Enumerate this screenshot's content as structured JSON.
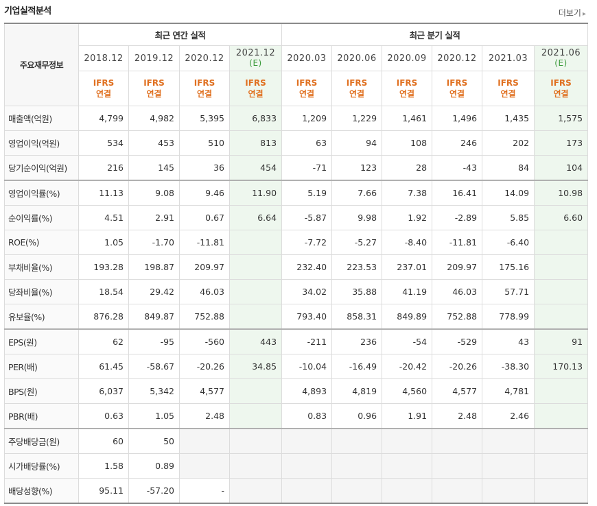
{
  "header": {
    "title": "기업실적분석",
    "more_label": "더보기",
    "more_icon": "chevron-right-icon"
  },
  "table": {
    "row_header_label": "주요재무정보",
    "groups": [
      "최근 연간 실적",
      "최근 분기 실적"
    ],
    "periods": [
      {
        "label": "2018.12",
        "est": ""
      },
      {
        "label": "2019.12",
        "est": ""
      },
      {
        "label": "2020.12",
        "est": ""
      },
      {
        "label": "2021.12",
        "est": "(E)"
      },
      {
        "label": "2020.03",
        "est": ""
      },
      {
        "label": "2020.06",
        "est": ""
      },
      {
        "label": "2020.09",
        "est": ""
      },
      {
        "label": "2020.12",
        "est": ""
      },
      {
        "label": "2021.03",
        "est": ""
      },
      {
        "label": "2021.06",
        "est": "(E)"
      }
    ],
    "ifrs_top": "IFRS",
    "ifrs_bottom": "연결",
    "rows": [
      {
        "label": "매출액(억원)",
        "values": [
          "4,799",
          "4,982",
          "5,395",
          "6,833",
          "1,209",
          "1,229",
          "1,461",
          "1,496",
          "1,435",
          "1,575"
        ]
      },
      {
        "label": "영업이익(억원)",
        "values": [
          "534",
          "453",
          "510",
          "813",
          "63",
          "94",
          "108",
          "246",
          "202",
          "173"
        ]
      },
      {
        "label": "당기순이익(억원)",
        "values": [
          "216",
          "145",
          "36",
          "454",
          "-71",
          "123",
          "28",
          "-43",
          "84",
          "104"
        ]
      },
      {
        "label": "영업이익률(%)",
        "values": [
          "11.13",
          "9.08",
          "9.46",
          "11.90",
          "5.19",
          "7.66",
          "7.38",
          "16.41",
          "14.09",
          "10.98"
        ]
      },
      {
        "label": "순이익률(%)",
        "values": [
          "4.51",
          "2.91",
          "0.67",
          "6.64",
          "-5.87",
          "9.98",
          "1.92",
          "-2.89",
          "5.85",
          "6.60"
        ]
      },
      {
        "label": "ROE(%)",
        "values": [
          "1.05",
          "-1.70",
          "-11.81",
          "",
          "-7.72",
          "-5.27",
          "-8.40",
          "-11.81",
          "-6.40",
          ""
        ]
      },
      {
        "label": "부채비율(%)",
        "values": [
          "193.28",
          "198.87",
          "209.97",
          "",
          "232.40",
          "223.53",
          "237.01",
          "209.97",
          "175.16",
          ""
        ]
      },
      {
        "label": "당좌비율(%)",
        "values": [
          "18.54",
          "29.42",
          "46.03",
          "",
          "34.02",
          "35.88",
          "41.19",
          "46.03",
          "57.71",
          ""
        ]
      },
      {
        "label": "유보율(%)",
        "values": [
          "876.28",
          "849.87",
          "752.88",
          "",
          "793.40",
          "858.31",
          "849.89",
          "752.88",
          "778.99",
          ""
        ]
      },
      {
        "label": "EPS(원)",
        "values": [
          "62",
          "-95",
          "-560",
          "443",
          "-211",
          "236",
          "-54",
          "-529",
          "43",
          "91"
        ]
      },
      {
        "label": "PER(배)",
        "values": [
          "61.45",
          "-58.67",
          "-20.26",
          "34.85",
          "-10.04",
          "-16.49",
          "-20.42",
          "-20.26",
          "-38.30",
          "170.13"
        ]
      },
      {
        "label": "BPS(원)",
        "values": [
          "6,037",
          "5,342",
          "4,577",
          "",
          "4,893",
          "4,819",
          "4,560",
          "4,577",
          "4,781",
          ""
        ]
      },
      {
        "label": "PBR(배)",
        "values": [
          "0.63",
          "1.05",
          "2.48",
          "",
          "0.83",
          "0.96",
          "1.91",
          "2.48",
          "2.46",
          ""
        ]
      },
      {
        "label": "주당배당금(원)",
        "values": [
          "60",
          "50",
          "",
          "",
          "",
          "",
          "",
          "",
          "",
          ""
        ],
        "blank_from": 2
      },
      {
        "label": "시가배당률(%)",
        "values": [
          "1.58",
          "0.89",
          "",
          "",
          "",
          "",
          "",
          "",
          "",
          ""
        ],
        "blank_from": 2
      },
      {
        "label": "배당성향(%)",
        "values": [
          "95.11",
          "-57.20",
          "-",
          "",
          "",
          "",
          "",
          "",
          "",
          ""
        ],
        "blank_from": 3
      }
    ],
    "colors": {
      "negative": "#e01010",
      "ifrs": "#e07020",
      "estimate_bg": "#eef7ee",
      "estimate_text": "#3a9a3a"
    }
  }
}
